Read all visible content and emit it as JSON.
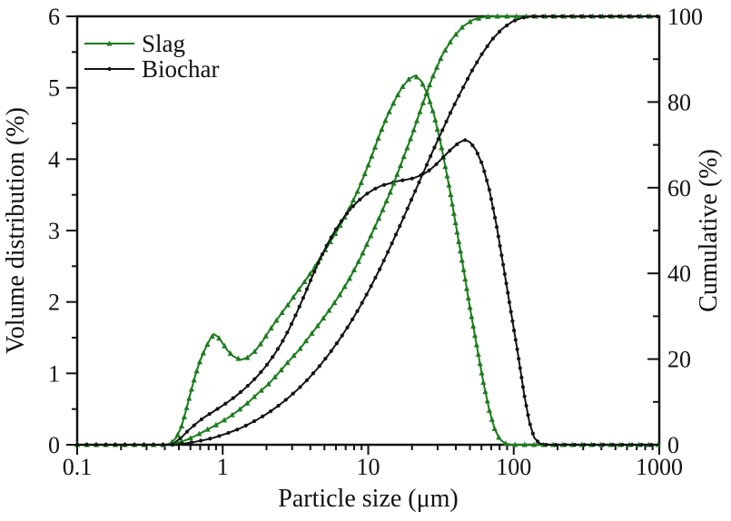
{
  "figure": {
    "background": "#ffffff",
    "axis_color": "#111111"
  },
  "chart_data": {
    "type": "line",
    "title": "",
    "grid": false,
    "x_axis": {
      "label": "Particle size (μm)",
      "scale": "log",
      "min": 0.1,
      "max": 1000,
      "ticks": [
        0.1,
        1,
        10,
        100,
        1000
      ],
      "tick_labels": [
        "0.1",
        "1",
        "10",
        "100",
        "1000"
      ]
    },
    "y_axis_left": {
      "label": "Volume distribution (%)",
      "min": 0,
      "max": 6,
      "ticks": [
        0,
        1,
        2,
        3,
        4,
        5,
        6
      ],
      "minor_ticks": [
        0.5,
        1.5,
        2.5,
        3.5,
        4.5,
        5.5
      ]
    },
    "y_axis_right": {
      "label": "Cumulative (%)",
      "min": 0,
      "max": 100,
      "ticks": [
        0,
        20,
        40,
        60,
        80,
        100
      ],
      "minor_ticks": [
        10,
        30,
        50,
        70,
        90
      ]
    },
    "legend": {
      "position": "top-left-inside",
      "items": [
        {
          "label": "Slag",
          "color": "#1b7c1c",
          "marker": "triangle"
        },
        {
          "label": "Biochar",
          "color": "#141414",
          "marker": "circle"
        }
      ]
    },
    "series": [
      {
        "name": "Slag volume distribution",
        "axis": "left",
        "color": "#1b7c1c",
        "marker": "triangle",
        "points": [
          [
            0.1,
            0
          ],
          [
            0.15,
            0
          ],
          [
            0.22,
            0
          ],
          [
            0.32,
            0
          ],
          [
            0.4,
            0
          ],
          [
            0.44,
            0.02
          ],
          [
            0.48,
            0.1
          ],
          [
            0.52,
            0.25
          ],
          [
            0.56,
            0.48
          ],
          [
            0.6,
            0.72
          ],
          [
            0.65,
            0.98
          ],
          [
            0.7,
            1.18
          ],
          [
            0.76,
            1.35
          ],
          [
            0.82,
            1.48
          ],
          [
            0.87,
            1.55
          ],
          [
            0.93,
            1.51
          ],
          [
            1.0,
            1.42
          ],
          [
            1.08,
            1.32
          ],
          [
            1.18,
            1.24
          ],
          [
            1.33,
            1.19
          ],
          [
            1.48,
            1.22
          ],
          [
            1.65,
            1.3
          ],
          [
            1.85,
            1.43
          ],
          [
            2.05,
            1.57
          ],
          [
            2.3,
            1.72
          ],
          [
            2.6,
            1.87
          ],
          [
            2.9,
            2.0
          ],
          [
            3.3,
            2.16
          ],
          [
            3.7,
            2.3
          ],
          [
            4.2,
            2.46
          ],
          [
            4.7,
            2.62
          ],
          [
            5.3,
            2.79
          ],
          [
            6.0,
            2.97
          ],
          [
            6.7,
            3.14
          ],
          [
            7.5,
            3.33
          ],
          [
            8.5,
            3.56
          ],
          [
            9.5,
            3.8
          ],
          [
            10.7,
            4.07
          ],
          [
            12.0,
            4.35
          ],
          [
            13.5,
            4.6
          ],
          [
            15.2,
            4.82
          ],
          [
            17.0,
            5.0
          ],
          [
            19.0,
            5.12
          ],
          [
            21.0,
            5.17
          ],
          [
            23.0,
            5.1
          ],
          [
            25.5,
            4.92
          ],
          [
            28.5,
            4.6
          ],
          [
            32.0,
            4.15
          ],
          [
            36.0,
            3.62
          ],
          [
            40.0,
            3.08
          ],
          [
            45.0,
            2.48
          ],
          [
            50.0,
            1.92
          ],
          [
            56.0,
            1.36
          ],
          [
            62.0,
            0.86
          ],
          [
            68.0,
            0.48
          ],
          [
            74.0,
            0.22
          ],
          [
            80.0,
            0.08
          ],
          [
            87.0,
            0.02
          ],
          [
            95.0,
            0
          ],
          [
            150.0,
            0
          ],
          [
            300.0,
            0
          ],
          [
            600.0,
            0
          ],
          [
            1000.0,
            0
          ]
        ]
      },
      {
        "name": "Biochar volume distribution",
        "axis": "left",
        "color": "#141414",
        "marker": "circle",
        "points": [
          [
            0.1,
            0
          ],
          [
            0.15,
            0
          ],
          [
            0.22,
            0
          ],
          [
            0.32,
            0
          ],
          [
            0.42,
            0
          ],
          [
            0.46,
            0.02
          ],
          [
            0.52,
            0.1
          ],
          [
            0.58,
            0.2
          ],
          [
            0.66,
            0.3
          ],
          [
            0.74,
            0.38
          ],
          [
            0.84,
            0.45
          ],
          [
            0.95,
            0.52
          ],
          [
            1.07,
            0.59
          ],
          [
            1.21,
            0.67
          ],
          [
            1.37,
            0.76
          ],
          [
            1.55,
            0.86
          ],
          [
            1.75,
            0.97
          ],
          [
            1.98,
            1.1
          ],
          [
            2.24,
            1.25
          ],
          [
            2.53,
            1.42
          ],
          [
            2.86,
            1.62
          ],
          [
            3.23,
            1.85
          ],
          [
            3.65,
            2.1
          ],
          [
            4.13,
            2.36
          ],
          [
            4.66,
            2.6
          ],
          [
            5.27,
            2.82
          ],
          [
            5.96,
            3.01
          ],
          [
            6.73,
            3.17
          ],
          [
            7.6,
            3.31
          ],
          [
            8.6,
            3.42
          ],
          [
            9.7,
            3.51
          ],
          [
            11.0,
            3.58
          ],
          [
            12.4,
            3.63
          ],
          [
            14.0,
            3.66
          ],
          [
            15.8,
            3.69
          ],
          [
            17.9,
            3.71
          ],
          [
            20.2,
            3.73
          ],
          [
            22.8,
            3.77
          ],
          [
            25.8,
            3.83
          ],
          [
            29.1,
            3.92
          ],
          [
            32.9,
            4.03
          ],
          [
            37.2,
            4.14
          ],
          [
            42.0,
            4.23
          ],
          [
            46.0,
            4.27
          ],
          [
            50.0,
            4.24
          ],
          [
            55.0,
            4.13
          ],
          [
            61.0,
            3.92
          ],
          [
            68.0,
            3.57
          ],
          [
            76.0,
            3.08
          ],
          [
            85.0,
            2.5
          ],
          [
            95.0,
            1.9
          ],
          [
            106.0,
            1.32
          ],
          [
            118.0,
            0.7
          ],
          [
            128.0,
            0.32
          ],
          [
            138.0,
            0.1
          ],
          [
            150.0,
            0.02
          ],
          [
            165.0,
            0
          ],
          [
            300.0,
            0
          ],
          [
            600.0,
            0
          ],
          [
            1000.0,
            0
          ]
        ]
      },
      {
        "name": "Slag cumulative",
        "axis": "right",
        "color": "#1b7c1c",
        "marker": "triangle",
        "points": [
          [
            0.1,
            0
          ],
          [
            0.2,
            0
          ],
          [
            0.32,
            0
          ],
          [
            0.42,
            0
          ],
          [
            0.48,
            0.4
          ],
          [
            0.56,
            1.1
          ],
          [
            0.66,
            2.2
          ],
          [
            0.78,
            3.5
          ],
          [
            0.92,
            4.8
          ],
          [
            1.08,
            6.2
          ],
          [
            1.27,
            7.9
          ],
          [
            1.5,
            9.9
          ],
          [
            1.76,
            12.1
          ],
          [
            2.07,
            14.2
          ],
          [
            2.43,
            16.8
          ],
          [
            2.86,
            19.6
          ],
          [
            3.36,
            22.2
          ],
          [
            3.95,
            25.3
          ],
          [
            4.64,
            28.4
          ],
          [
            5.45,
            31.6
          ],
          [
            6.41,
            35.1
          ],
          [
            7.5,
            39.0
          ],
          [
            8.9,
            43.8
          ],
          [
            10.4,
            48.7
          ],
          [
            12.2,
            53.8
          ],
          [
            14.4,
            59.5
          ],
          [
            16.9,
            65.7
          ],
          [
            19.9,
            72.1
          ],
          [
            23.4,
            79.1
          ],
          [
            27.5,
            85.6
          ],
          [
            32.3,
            91.0
          ],
          [
            38.0,
            94.9
          ],
          [
            44.6,
            97.6
          ],
          [
            52.4,
            99.2
          ],
          [
            61.6,
            99.8
          ],
          [
            72.0,
            100
          ],
          [
            100.0,
            100
          ],
          [
            200.0,
            100
          ],
          [
            400.0,
            100
          ],
          [
            700.0,
            100
          ],
          [
            1000.0,
            100
          ]
        ]
      },
      {
        "name": "Biochar cumulative",
        "axis": "right",
        "color": "#141414",
        "marker": "circle",
        "points": [
          [
            0.1,
            0
          ],
          [
            0.2,
            0
          ],
          [
            0.32,
            0
          ],
          [
            0.46,
            0
          ],
          [
            0.55,
            0.3
          ],
          [
            0.65,
            0.7
          ],
          [
            0.77,
            1.2
          ],
          [
            0.9,
            1.8
          ],
          [
            1.06,
            2.6
          ],
          [
            1.25,
            3.5
          ],
          [
            1.47,
            4.6
          ],
          [
            1.73,
            5.9
          ],
          [
            2.03,
            7.3
          ],
          [
            2.39,
            9.0
          ],
          [
            2.81,
            10.9
          ],
          [
            3.3,
            13.0
          ],
          [
            3.88,
            15.4
          ],
          [
            4.56,
            18.1
          ],
          [
            5.36,
            21.1
          ],
          [
            6.3,
            24.4
          ],
          [
            7.4,
            28.0
          ],
          [
            8.7,
            32.0
          ],
          [
            10.2,
            36.3
          ],
          [
            12.0,
            41.0
          ],
          [
            14.1,
            46.0
          ],
          [
            16.6,
            51.3
          ],
          [
            19.5,
            56.7
          ],
          [
            23.0,
            62.2
          ],
          [
            27.0,
            67.6
          ],
          [
            31.7,
            72.8
          ],
          [
            37.2,
            77.9
          ],
          [
            43.8,
            82.7
          ],
          [
            51.4,
            87.2
          ],
          [
            60.4,
            91.2
          ],
          [
            71.0,
            94.6
          ],
          [
            83.4,
            97.1
          ],
          [
            98.0,
            98.8
          ],
          [
            115.0,
            99.7
          ],
          [
            135.0,
            100
          ],
          [
            200.0,
            100
          ],
          [
            400.0,
            100
          ],
          [
            700.0,
            100
          ],
          [
            1000.0,
            100
          ]
        ]
      }
    ]
  }
}
